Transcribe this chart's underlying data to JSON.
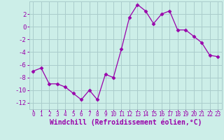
{
  "x": [
    0,
    1,
    2,
    3,
    4,
    5,
    6,
    7,
    8,
    9,
    10,
    11,
    12,
    13,
    14,
    15,
    16,
    17,
    18,
    19,
    20,
    21,
    22,
    23
  ],
  "y": [
    -7.0,
    -6.5,
    -9.0,
    -9.0,
    -9.5,
    -10.5,
    -11.5,
    -10.0,
    -11.5,
    -7.5,
    -8.0,
    -3.5,
    1.5,
    3.5,
    2.5,
    0.5,
    2.0,
    2.5,
    -0.5,
    -0.5,
    -1.5,
    -2.5,
    -4.5,
    -4.7
  ],
  "line_color": "#9900aa",
  "marker": "D",
  "marker_size": 2.5,
  "bg_color": "#cceee8",
  "grid_color": "#aacccc",
  "xlabel": "Windchill (Refroidissement éolien,°C)",
  "xlim": [
    -0.5,
    23.5
  ],
  "ylim": [
    -13,
    4
  ],
  "yticks": [
    2,
    0,
    -2,
    -4,
    -6,
    -8,
    -10,
    -12
  ],
  "xticks": [
    0,
    1,
    2,
    3,
    4,
    5,
    6,
    7,
    8,
    9,
    10,
    11,
    12,
    13,
    14,
    15,
    16,
    17,
    18,
    19,
    20,
    21,
    22,
    23
  ],
  "tick_color": "#9900aa",
  "label_color": "#9900aa",
  "tick_fontsize": 6.5,
  "xtick_fontsize": 5.5,
  "label_fontsize": 7.0
}
